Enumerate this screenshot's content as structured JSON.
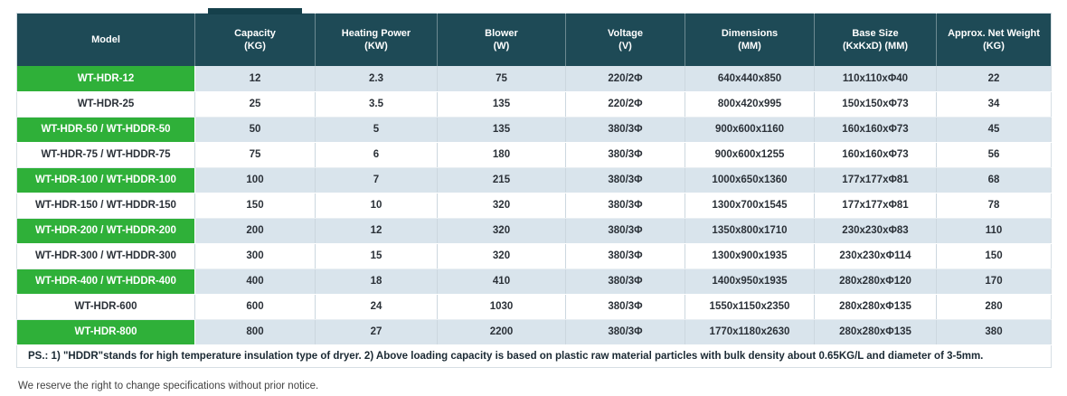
{
  "table": {
    "columns": [
      {
        "id": "model",
        "label": "Model",
        "unit": ""
      },
      {
        "id": "capacity",
        "label": "Capacity",
        "unit": "(KG)"
      },
      {
        "id": "heating-power",
        "label": "Heating Power",
        "unit": "(KW)"
      },
      {
        "id": "blower",
        "label": "Blower",
        "unit": "(W)"
      },
      {
        "id": "voltage",
        "label": "Voltage",
        "unit": "(V)"
      },
      {
        "id": "dimensions",
        "label": "Dimensions",
        "unit": "(MM)"
      },
      {
        "id": "base-size",
        "label": "Base Size",
        "unit": "(KxKxD) (MM)"
      },
      {
        "id": "net-weight",
        "label": "Approx. Net Weight",
        "unit": "(KG)"
      }
    ],
    "rows": [
      {
        "model": "WT-HDR-12",
        "highlight": true,
        "values": [
          "12",
          "2.3",
          "75",
          "220/2Φ",
          "640x440x850",
          "110x110xΦ40",
          "22"
        ]
      },
      {
        "model": "WT-HDR-25",
        "highlight": false,
        "values": [
          "25",
          "3.5",
          "135",
          "220/2Φ",
          "800x420x995",
          "150x150xΦ73",
          "34"
        ]
      },
      {
        "model": "WT-HDR-50 / WT-HDDR-50",
        "highlight": true,
        "values": [
          "50",
          "5",
          "135",
          "380/3Φ",
          "900x600x1160",
          "160x160xΦ73",
          "45"
        ]
      },
      {
        "model": "WT-HDR-75 / WT-HDDR-75",
        "highlight": false,
        "values": [
          "75",
          "6",
          "180",
          "380/3Φ",
          "900x600x1255",
          "160x160xΦ73",
          "56"
        ]
      },
      {
        "model": "WT-HDR-100 / WT-HDDR-100",
        "highlight": true,
        "values": [
          "100",
          "7",
          "215",
          "380/3Φ",
          "1000x650x1360",
          "177x177xΦ81",
          "68"
        ]
      },
      {
        "model": "WT-HDR-150 / WT-HDDR-150",
        "highlight": false,
        "values": [
          "150",
          "10",
          "320",
          "380/3Φ",
          "1300x700x1545",
          "177x177xΦ81",
          "78"
        ]
      },
      {
        "model": "WT-HDR-200 / WT-HDDR-200",
        "highlight": true,
        "values": [
          "200",
          "12",
          "320",
          "380/3Φ",
          "1350x800x1710",
          "230x230xΦ83",
          "110"
        ]
      },
      {
        "model": "WT-HDR-300 / WT-HDDR-300",
        "highlight": false,
        "values": [
          "300",
          "15",
          "320",
          "380/3Φ",
          "1300x900x1935",
          "230x230xΦ114",
          "150"
        ]
      },
      {
        "model": "WT-HDR-400 / WT-HDDR-400",
        "highlight": true,
        "values": [
          "400",
          "18",
          "410",
          "380/3Φ",
          "1400x950x1935",
          "280x280xΦ120",
          "170"
        ]
      },
      {
        "model": "WT-HDR-600",
        "highlight": false,
        "values": [
          "600",
          "24",
          "1030",
          "380/3Φ",
          "1550x1150x2350",
          "280x280xΦ135",
          "280"
        ]
      },
      {
        "model": "WT-HDR-800",
        "highlight": true,
        "values": [
          "800",
          "27",
          "2200",
          "380/3Φ",
          "1770x1180x2630",
          "280x280xΦ135",
          "380"
        ]
      }
    ],
    "ps_note": "PS.:  1) \"HDDR\"stands for high temperature insulation type of dryer.    2) Above loading capacity is based on plastic raw material particles with bulk density about 0.65KG/L and diameter of 3-5mm."
  },
  "footer": {
    "disclaimer": "We reserve the right to change specifications without prior notice."
  },
  "colors": {
    "header_bg": "#1e4a56",
    "header_tab": "#15404b",
    "header_text": "#ffffff",
    "model_highlight": "#2fb039",
    "row_alt_bg": "#d9e4ec"
  }
}
